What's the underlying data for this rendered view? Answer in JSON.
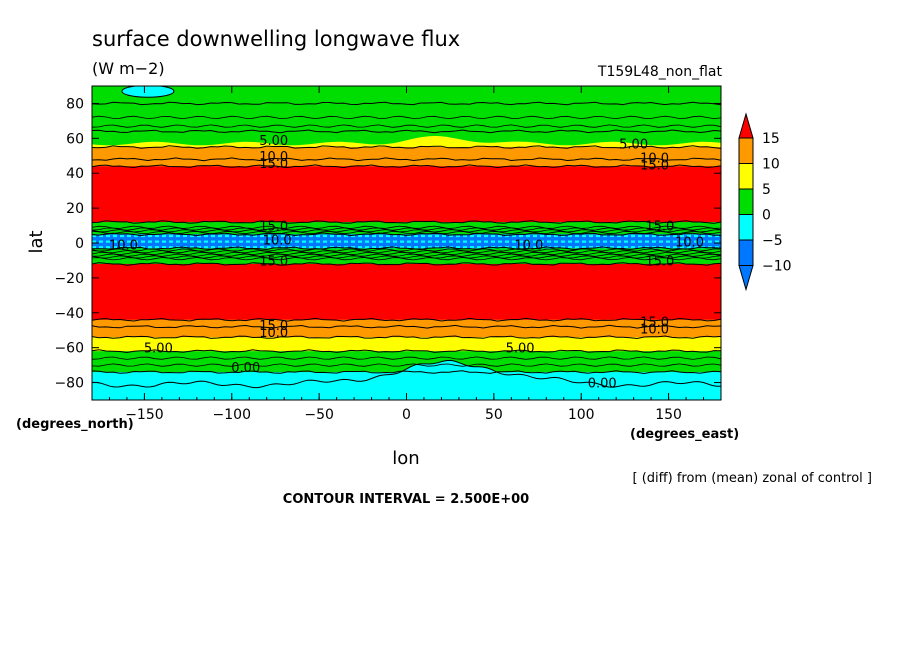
{
  "chart_data": {
    "type": "heatmap",
    "title": "surface downwelling longwave flux",
    "units": "(W m−2)",
    "run_label": "T159L48_non_flat",
    "xlabel": "lon",
    "ylabel": "lat",
    "x_unit_label": "(degrees_east)",
    "y_unit_label": "(degrees_north)",
    "xlim": [
      -180,
      180
    ],
    "ylim": [
      -90,
      90
    ],
    "x_ticks": [
      -150,
      -100,
      -50,
      0,
      50,
      100,
      150
    ],
    "x_tick_labels": [
      "−150",
      "−100",
      "−50",
      "0",
      "50",
      "100",
      "150"
    ],
    "y_ticks": [
      80,
      60,
      40,
      20,
      0,
      -20,
      -40,
      -60,
      -80
    ],
    "y_tick_labels": [
      "80",
      "60",
      "40",
      "20",
      "0",
      "−20",
      "−40",
      "−60",
      "−80"
    ],
    "note": "[ (diff) from (mean) zonal of control ]",
    "contour_interval_text": "CONTOUR INTERVAL = 2.500E+00",
    "colorbar": {
      "levels": [
        15,
        10,
        5,
        0,
        -5,
        -10
      ],
      "level_labels": [
        "15",
        "10",
        "5",
        "0",
        "−5",
        "−10"
      ],
      "colors": [
        "#ff0000",
        "#ff9900",
        "#ffff00",
        "#00dd00",
        "#00ffff",
        "#0077ff"
      ],
      "over_color": "#ff0000",
      "under_color": "#0077ff"
    },
    "zonal_bands": [
      {
        "lat_min": 80,
        "lat_max": 90,
        "value": 2.5
      },
      {
        "lat_min": 55,
        "lat_max": 64,
        "value": 6
      },
      {
        "lat_min": 48,
        "lat_max": 55,
        "value": 11
      },
      {
        "lat_min": 44,
        "lat_max": 48,
        "value": 13
      },
      {
        "lat_min": 12,
        "lat_max": 44,
        "value": 18
      },
      {
        "lat_min": 5,
        "lat_max": 12,
        "value": 3
      },
      {
        "lat_min": -3,
        "lat_max": 5,
        "value": -11
      },
      {
        "lat_min": -12,
        "lat_max": -3,
        "value": 3
      },
      {
        "lat_min": -44,
        "lat_max": -12,
        "value": 18
      },
      {
        "lat_min": -48,
        "lat_max": -44,
        "value": 13
      },
      {
        "lat_min": -54,
        "lat_max": -48,
        "value": 11
      },
      {
        "lat_min": -62,
        "lat_max": -54,
        "value": 6
      },
      {
        "lat_min": -74,
        "lat_max": -62,
        "value": 2
      },
      {
        "lat_min": -90,
        "lat_max": -74,
        "value": -3
      }
    ],
    "contour_labels": [
      {
        "text": "5.00",
        "lon": -76,
        "lat": 59
      },
      {
        "text": "10.0",
        "lon": -76,
        "lat": 50
      },
      {
        "text": "15.0",
        "lon": -76,
        "lat": 46
      },
      {
        "text": "5.00",
        "lon": 130,
        "lat": 57
      },
      {
        "text": "10.0",
        "lon": 142,
        "lat": 49
      },
      {
        "text": "15.0",
        "lon": 142,
        "lat": 45
      },
      {
        "text": "15.0",
        "lon": -76,
        "lat": 10
      },
      {
        "text": "10.0",
        "lon": -74,
        "lat": 2
      },
      {
        "text": "10.0",
        "lon": -162,
        "lat": -1
      },
      {
        "text": "10.0",
        "lon": 70,
        "lat": -1
      },
      {
        "text": "15.0",
        "lon": 145,
        "lat": 10
      },
      {
        "text": "10.0",
        "lon": 162,
        "lat": 1
      },
      {
        "text": "15.0",
        "lon": -76,
        "lat": -10
      },
      {
        "text": "15.0",
        "lon": 145,
        "lat": -10
      },
      {
        "text": "15.0",
        "lon": -76,
        "lat": -47
      },
      {
        "text": "10.0",
        "lon": -76,
        "lat": -51
      },
      {
        "text": "15.0",
        "lon": 142,
        "lat": -45
      },
      {
        "text": "10.0",
        "lon": 142,
        "lat": -49
      },
      {
        "text": "5.00",
        "lon": -142,
        "lat": -60
      },
      {
        "text": "5.00",
        "lon": 65,
        "lat": -60
      },
      {
        "text": "0.00",
        "lon": -92,
        "lat": -71
      },
      {
        "text": "0.00",
        "lon": 112,
        "lat": -80
      }
    ]
  }
}
